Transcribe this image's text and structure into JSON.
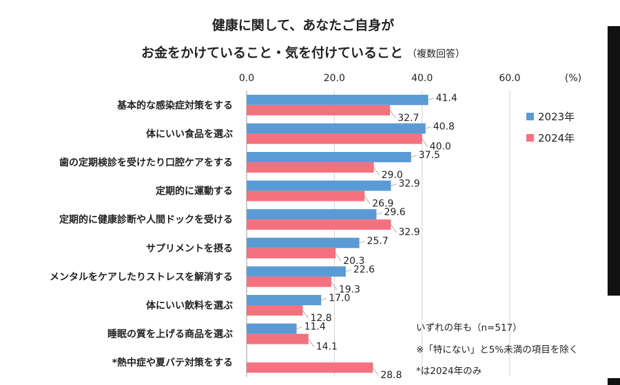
{
  "title_line1": "健康に関して、あなたご自身が",
  "title_line2": "お金をかけていること・気を付けていること",
  "title_sub": "（複数回答）",
  "unit_label": "(%)",
  "notes": [
    "いずれの年も（n=517）",
    "※「特にない」と5%未満の項目を除く",
    "*は2024年のみ"
  ],
  "colors": {
    "s2023": "#5b9bd5",
    "s2024": "#f4717f"
  },
  "chart_data": {
    "type": "bar",
    "orientation": "horizontal",
    "categories": [
      "基本的な感染症対策をする",
      "体にいい食品を選ぶ",
      "歯の定期検診を受けたり口腔ケアをする",
      "定期的に運動する",
      "定期的に健康診断や人間ドックを受ける",
      "サプリメントを摂る",
      "メンタルをケアしたりストレスを解消する",
      "体にいい飲料を選ぶ",
      "睡眠の質を上げる商品を選ぶ",
      "*熱中症や夏バテ対策をする"
    ],
    "series": [
      {
        "name": "2023年",
        "values": [
          41.4,
          40.8,
          37.5,
          32.9,
          29.6,
          25.7,
          22.6,
          17.0,
          11.4,
          null
        ],
        "labels": [
          "41.4",
          "40.8",
          "37.5",
          "32.9",
          "29.6",
          "25.7",
          "22.6",
          "17.0",
          "11.4",
          null
        ]
      },
      {
        "name": "2024年",
        "values": [
          32.7,
          40.0,
          29.0,
          26.9,
          32.9,
          20.3,
          19.3,
          12.8,
          14.1,
          28.8
        ],
        "labels": [
          "32.7",
          "40.0",
          "29.0",
          "26.9",
          "32.9",
          "20.3",
          "19.3",
          "12.8",
          "14.1",
          "28.8"
        ]
      }
    ],
    "xlim": [
      0,
      60
    ],
    "xticks": [
      "0.0",
      "20.0",
      "40.0",
      "60.0"
    ],
    "grid": true,
    "legend_position": "right"
  }
}
